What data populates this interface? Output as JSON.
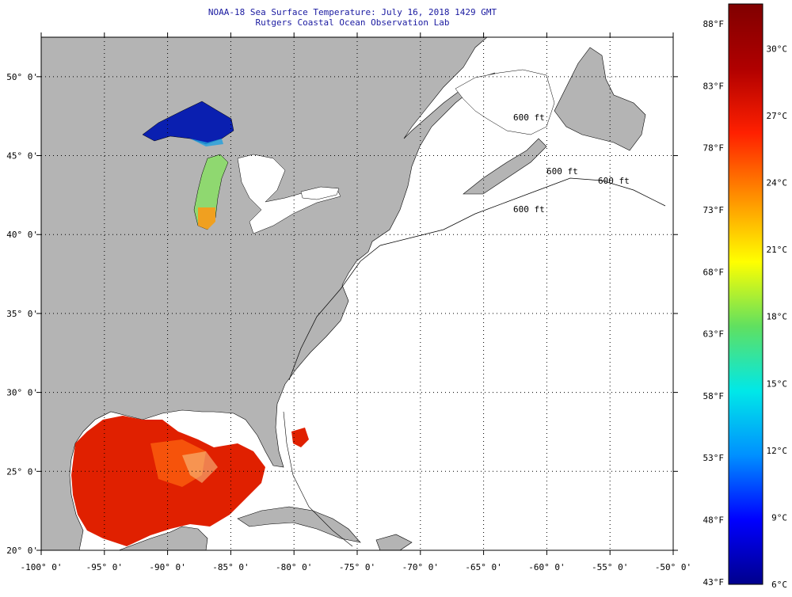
{
  "header": {
    "title": "NOAA-18 Sea Surface Temperature:  July 16, 2018 1429 GMT",
    "subtitle": "Rutgers Coastal Ocean Observation Lab"
  },
  "map": {
    "lon_range": [
      -100,
      -50
    ],
    "lat_range": [
      20,
      52.5
    ],
    "lon_ticks": [
      {
        "value": -100,
        "label": "-100° 0'"
      },
      {
        "value": -95,
        "label": "-95° 0'"
      },
      {
        "value": -90,
        "label": "-90° 0'"
      },
      {
        "value": -85,
        "label": "-85° 0'"
      },
      {
        "value": -80,
        "label": "-80° 0'"
      },
      {
        "value": -75,
        "label": "-75° 0'"
      },
      {
        "value": -70,
        "label": "-70° 0'"
      },
      {
        "value": -65,
        "label": "-65° 0'"
      },
      {
        "value": -60,
        "label": "-60° 0'"
      },
      {
        "value": -55,
        "label": "-55° 0'"
      },
      {
        "value": -50,
        "label": "-50° 0'"
      }
    ],
    "lat_ticks": [
      {
        "value": 50,
        "label": "50° 0'"
      },
      {
        "value": 45,
        "label": "45° 0'"
      },
      {
        "value": 40,
        "label": "40° 0'"
      },
      {
        "value": 35,
        "label": "35° 0'"
      },
      {
        "value": 30,
        "label": "30° 0'"
      },
      {
        "value": 25,
        "label": "25° 0'"
      },
      {
        "value": 20,
        "label": "20° 0'"
      }
    ],
    "land_color": "#b4b4b4",
    "ocean_color": "#ffffff",
    "contour_labels": [
      "600 ft",
      "600 ft",
      "600 ft",
      "600 ft"
    ]
  },
  "colorbar": {
    "range_c": [
      6,
      32
    ],
    "fahrenheit": [
      {
        "value": 88,
        "label": "88°F"
      },
      {
        "value": 83,
        "label": "83°F"
      },
      {
        "value": 78,
        "label": "78°F"
      },
      {
        "value": 73,
        "label": "73°F"
      },
      {
        "value": 68,
        "label": "68°F"
      },
      {
        "value": 63,
        "label": "63°F"
      },
      {
        "value": 58,
        "label": "58°F"
      },
      {
        "value": 53,
        "label": "53°F"
      },
      {
        "value": 48,
        "label": "48°F"
      },
      {
        "value": 43,
        "label": "43°F"
      }
    ],
    "celsius": [
      {
        "value": 30,
        "label": "30°C"
      },
      {
        "value": 27,
        "label": "27°C"
      },
      {
        "value": 24,
        "label": "24°C"
      },
      {
        "value": 21,
        "label": "21°C"
      },
      {
        "value": 18,
        "label": "18°C"
      },
      {
        "value": 15,
        "label": "15°C"
      },
      {
        "value": 12,
        "label": "12°C"
      },
      {
        "value": 9,
        "label": "9°C"
      },
      {
        "value": 6,
        "label": "6°C"
      }
    ],
    "stops": [
      "#00008c",
      "#0000ff",
      "#0090ff",
      "#00e8e8",
      "#60e060",
      "#ffff00",
      "#ff9000",
      "#ff2000",
      "#b00000",
      "#800000"
    ]
  }
}
